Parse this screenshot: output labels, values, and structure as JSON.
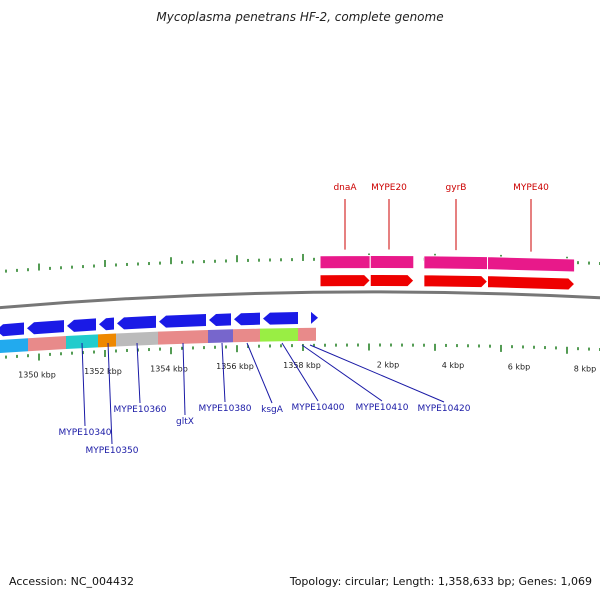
{
  "title": "Mycoplasma penetrans HF-2, complete genome",
  "footer": {
    "accession": "Accession: NC_004432",
    "topology": "Topology: circular; Length: 1,358,633 bp; Genes: 1,069"
  },
  "colors": {
    "backbone": "#777777",
    "forward_rna": "#e8198a",
    "forward_cds": "#ee0000",
    "reverse_cds": "#1a1ae6",
    "tick": "#1a7a1a",
    "label_forward": "#cc0000",
    "label_reverse": "#1a1aa6"
  },
  "scale": {
    "tick_labels": [
      "1350 kbp",
      "1352 kbp",
      "1354 kbp",
      "1356 kbp",
      "1358 kbp",
      "2 kbp",
      "4 kbp",
      "6 kbp",
      "8 kbp"
    ]
  },
  "forward_genes": [
    {
      "name": "dnaA",
      "start_kb": 0.0,
      "end_kb": 1.5
    },
    {
      "name": "MYPE20",
      "start_kb": 1.5,
      "end_kb": 2.8
    },
    {
      "name": "gyrB",
      "start_kb": 3.1,
      "end_kb": 5.0
    },
    {
      "name": "MYPE40",
      "start_kb": 5.0,
      "end_kb": 7.6
    }
  ],
  "reverse_genes": [
    {
      "name": "MYPE10340"
    },
    {
      "name": "MYPE10350"
    },
    {
      "name": "MYPE10360"
    },
    {
      "name": "gltX"
    },
    {
      "name": "MYPE10380"
    },
    {
      "name": "ksgA"
    },
    {
      "name": "MYPE10400"
    },
    {
      "name": "MYPE10410"
    },
    {
      "name": "MYPE10420"
    }
  ],
  "cog_segments": [
    {
      "color": "#22aaee"
    },
    {
      "color": "#e88a8a"
    },
    {
      "color": "#22cccc"
    },
    {
      "color": "#ee8800"
    },
    {
      "color": "#bbbbbb"
    },
    {
      "color": "#e88a8a"
    },
    {
      "color": "#7766cc"
    },
    {
      "color": "#e88a8a"
    },
    {
      "color": "#99ee44"
    },
    {
      "color": "#e88a8a"
    }
  ]
}
